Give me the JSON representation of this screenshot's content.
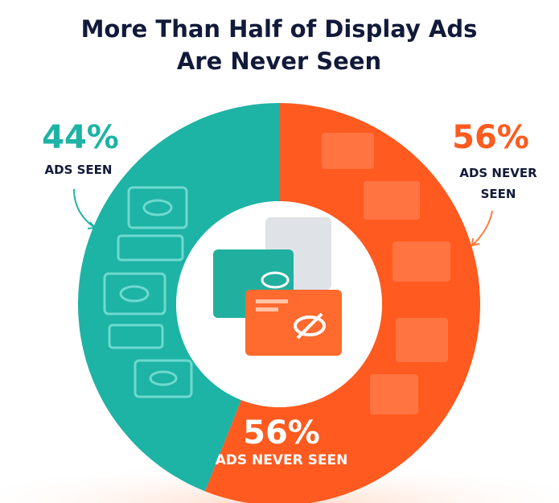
{
  "chart_data": {
    "type": "pie",
    "title": "More Than Half of Display Ads Are Never Seen",
    "categories": [
      "ADS SEEN",
      "ADS NEVER SEEN"
    ],
    "values": [
      44,
      56
    ],
    "value_labels": [
      "44%",
      "56%"
    ],
    "colors": [
      "#1db3a5",
      "#ff5a1f"
    ],
    "donut": true
  }
}
